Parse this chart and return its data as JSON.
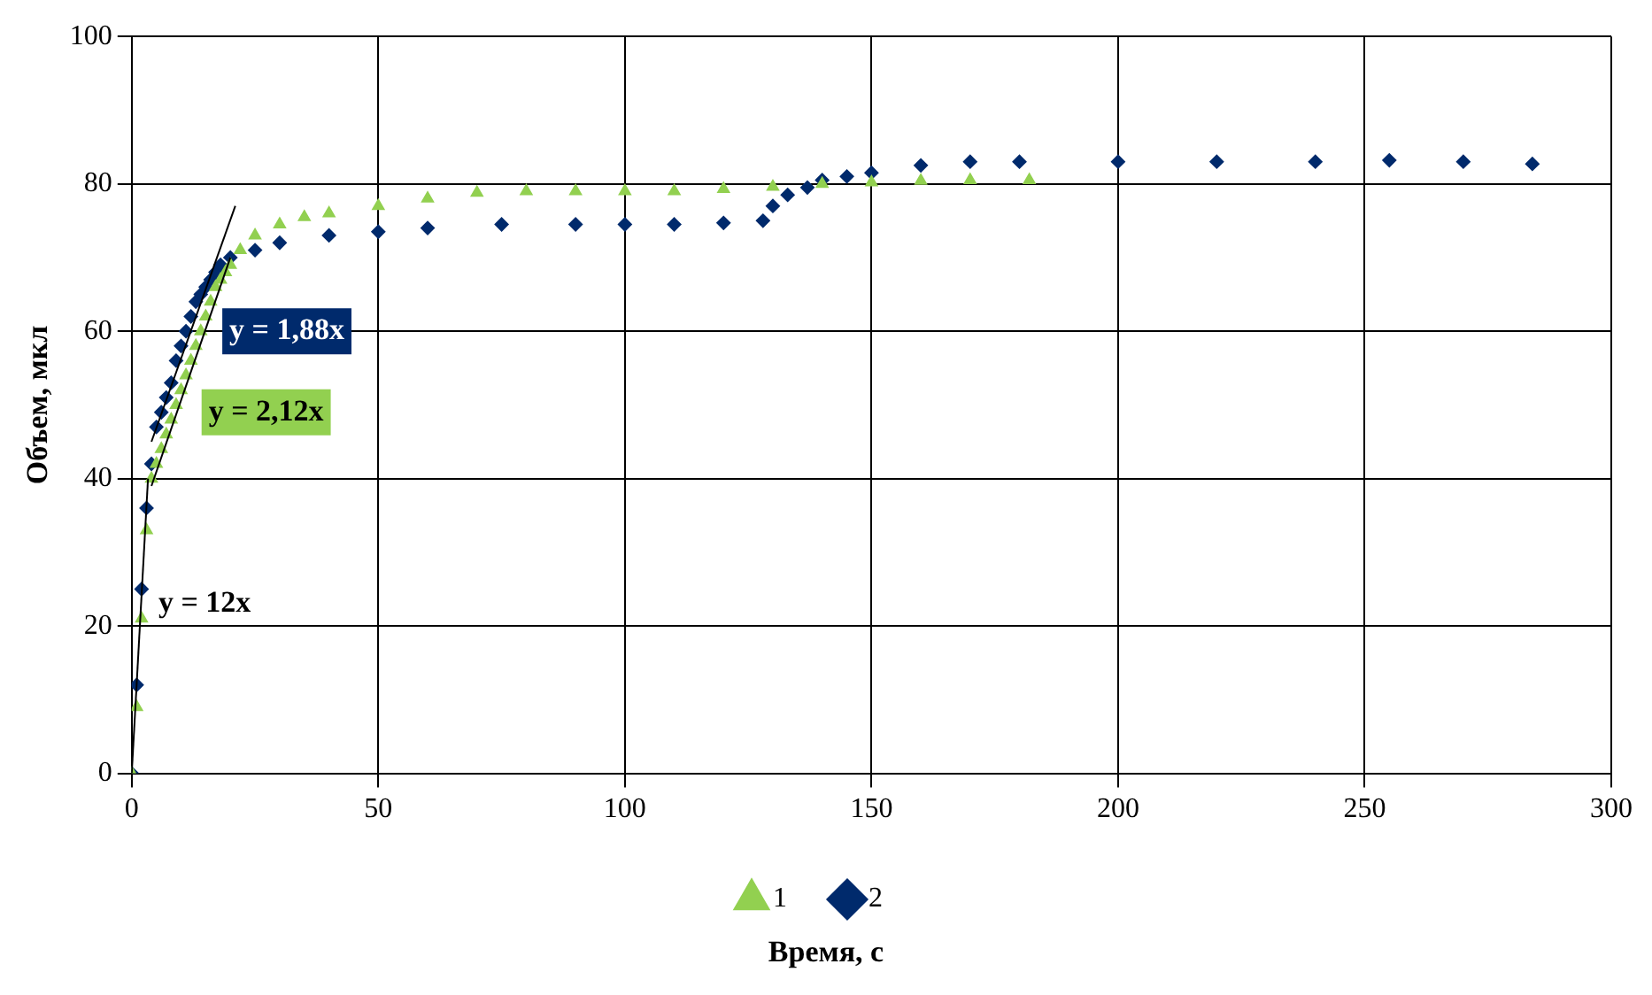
{
  "chart_data": {
    "type": "scatter",
    "xlabel": "Время, с",
    "ylabel": "Объем, мкл",
    "xlim": [
      0,
      300
    ],
    "xticks": [
      0,
      50,
      100,
      150,
      200,
      250,
      300
    ],
    "ylim": [
      0,
      100
    ],
    "yticks": [
      0,
      20,
      40,
      60,
      80,
      100
    ],
    "grid": true,
    "legend": "bottom",
    "series": [
      {
        "name": "1",
        "color": "#92d050",
        "marker": "triangle",
        "x": [
          0,
          1,
          2,
          3,
          4,
          5,
          6,
          7,
          8,
          9,
          10,
          11,
          12,
          13,
          14,
          15,
          16,
          17,
          18,
          19,
          20,
          22,
          25,
          30,
          35,
          40,
          50,
          60,
          70,
          80,
          90,
          100,
          110,
          120,
          130,
          140,
          150,
          160,
          170,
          182
        ],
        "values": [
          0,
          9,
          21,
          33,
          40,
          42,
          44,
          46,
          48,
          50,
          52,
          54,
          56,
          58,
          60,
          62,
          64,
          66,
          67,
          68,
          69,
          71,
          73,
          74.5,
          75.5,
          76,
          77,
          78,
          78.8,
          79,
          79,
          79,
          79,
          79.3,
          79.6,
          80,
          80.2,
          80.4,
          80.5,
          80.5
        ]
      },
      {
        "name": "2",
        "color": "#002a6c",
        "marker": "diamond",
        "x": [
          0,
          1,
          2,
          3,
          4,
          5,
          6,
          7,
          8,
          9,
          10,
          11,
          12,
          13,
          14,
          15,
          16,
          17,
          18,
          20,
          25,
          30,
          40,
          50,
          60,
          75,
          90,
          100,
          110,
          120,
          128,
          130,
          133,
          137,
          140,
          145,
          150,
          160,
          170,
          180,
          200,
          220,
          240,
          255,
          270,
          284
        ],
        "values": [
          0,
          12,
          25,
          36,
          42,
          47,
          49,
          51,
          53,
          56,
          58,
          60,
          62,
          64,
          65,
          66,
          67,
          68,
          69,
          70,
          71,
          72,
          73,
          73.5,
          74,
          74.5,
          74.5,
          74.5,
          74.5,
          74.7,
          75,
          77,
          78.5,
          79.5,
          80.5,
          81,
          81.5,
          82.5,
          83,
          83,
          83,
          83,
          83,
          83.2,
          83,
          82.7
        ]
      },
      {
        "type": "line",
        "color": "#000000",
        "marker": "none",
        "x": [
          0,
          3.3
        ],
        "values": [
          0,
          40
        ]
      },
      {
        "type": "line",
        "color": "#000000",
        "marker": "none",
        "x": [
          4,
          21
        ],
        "values": [
          45,
          77
        ]
      },
      {
        "type": "line",
        "color": "#000000",
        "marker": "none",
        "x": [
          4,
          20
        ],
        "values": [
          39,
          70
        ]
      }
    ],
    "annotations": [
      "y = 12x",
      "y = 1,88x",
      "y = 2,12x"
    ]
  }
}
